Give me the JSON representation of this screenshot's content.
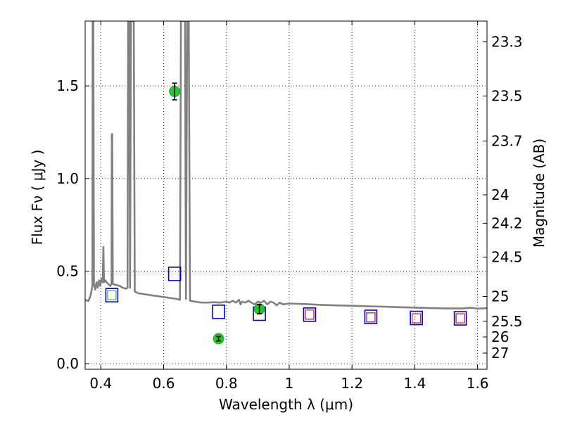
{
  "chart_data": {
    "type": "scatter",
    "xlabel": "Wavelength  λ (μm)",
    "ylabel": "Flux  Fν  ( μJy )",
    "y2label": "Magnitude (AB)",
    "xlim": [
      0.35,
      1.63
    ],
    "ylim": [
      -0.03,
      1.85
    ],
    "grid": true,
    "xticks": [
      0.4,
      0.6,
      0.8,
      1.0,
      1.2,
      1.4,
      1.6
    ],
    "xtick_labels": [
      "0.4",
      "0.6",
      "0.8",
      "1",
      "1.2",
      "1.4",
      "1.6"
    ],
    "yticks": [
      0.0,
      0.5,
      1.0,
      1.5
    ],
    "ytick_labels": [
      "0.0",
      "0.5",
      "1.0",
      "1.5"
    ],
    "mag_ticks": [
      23.3,
      23.5,
      23.7,
      24,
      24.2,
      24.5,
      25,
      25.5,
      26,
      27
    ],
    "mag_tick_labels": [
      "23.3",
      "23.5",
      "23.7",
      "24",
      "24.2",
      "24.5",
      "25",
      "25.5",
      "26",
      "27"
    ],
    "colors": {
      "model": "#808080",
      "observed": "#22cc22",
      "blue_square": "#0000dd",
      "red_square": "#cc2222",
      "green_square": "#55bb55"
    },
    "observed": [
      {
        "x": 0.635,
        "y": 1.47,
        "err": 0.045
      },
      {
        "x": 0.775,
        "y": 0.135,
        "err": 0.012
      },
      {
        "x": 0.905,
        "y": 0.295,
        "err": 0.025
      }
    ],
    "model_photometry_blue": [
      {
        "x": 0.435,
        "y": 0.37
      },
      {
        "x": 0.635,
        "y": 0.485
      },
      {
        "x": 0.775,
        "y": 0.28
      },
      {
        "x": 0.905,
        "y": 0.27
      },
      {
        "x": 1.065,
        "y": 0.265
      },
      {
        "x": 1.26,
        "y": 0.253
      },
      {
        "x": 1.405,
        "y": 0.247
      },
      {
        "x": 1.545,
        "y": 0.245
      }
    ],
    "model_photometry_red": [
      {
        "x": 1.065,
        "y": 0.265
      },
      {
        "x": 1.26,
        "y": 0.25
      },
      {
        "x": 1.405,
        "y": 0.245
      },
      {
        "x": 1.545,
        "y": 0.245
      }
    ],
    "model_photometry_green": [
      {
        "x": 0.435,
        "y": 0.37
      }
    ],
    "model_spectrum": [
      [
        0.35,
        0.345
      ],
      [
        0.36,
        0.338
      ],
      [
        0.366,
        0.36
      ],
      [
        0.37,
        0.39
      ],
      [
        0.373,
        0.42
      ],
      [
        0.374,
        1.85
      ],
      [
        0.376,
        1.85
      ],
      [
        0.378,
        0.43
      ],
      [
        0.382,
        0.4
      ],
      [
        0.386,
        0.44
      ],
      [
        0.39,
        0.41
      ],
      [
        0.394,
        0.45
      ],
      [
        0.398,
        0.42
      ],
      [
        0.402,
        0.46
      ],
      [
        0.406,
        0.44
      ],
      [
        0.408,
        0.63
      ],
      [
        0.41,
        0.44
      ],
      [
        0.414,
        0.45
      ],
      [
        0.418,
        0.44
      ],
      [
        0.424,
        0.43
      ],
      [
        0.43,
        0.42
      ],
      [
        0.434,
        0.43
      ],
      [
        0.435,
        1.24
      ],
      [
        0.436,
        1.24
      ],
      [
        0.438,
        0.43
      ],
      [
        0.45,
        0.425
      ],
      [
        0.46,
        0.42
      ],
      [
        0.47,
        0.41
      ],
      [
        0.48,
        0.405
      ],
      [
        0.485,
        0.41
      ],
      [
        0.487,
        1.85
      ],
      [
        0.49,
        1.85
      ],
      [
        0.493,
        0.41
      ],
      [
        0.496,
        1.85
      ],
      [
        0.499,
        1.85
      ],
      [
        0.502,
        1.85
      ],
      [
        0.505,
        1.85
      ],
      [
        0.508,
        0.39
      ],
      [
        0.52,
        0.38
      ],
      [
        0.54,
        0.375
      ],
      [
        0.56,
        0.37
      ],
      [
        0.58,
        0.365
      ],
      [
        0.6,
        0.36
      ],
      [
        0.62,
        0.355
      ],
      [
        0.64,
        0.35
      ],
      [
        0.652,
        0.345
      ],
      [
        0.655,
        1.85
      ],
      [
        0.66,
        1.85
      ],
      [
        0.663,
        1.85
      ],
      [
        0.666,
        1.85
      ],
      [
        0.668,
        1.85
      ],
      [
        0.671,
        0.35
      ],
      [
        0.675,
        1.85
      ],
      [
        0.68,
        1.85
      ],
      [
        0.684,
        0.34
      ],
      [
        0.7,
        0.335
      ],
      [
        0.72,
        0.33
      ],
      [
        0.74,
        0.33
      ],
      [
        0.76,
        0.332
      ],
      [
        0.78,
        0.33
      ],
      [
        0.8,
        0.335
      ],
      [
        0.81,
        0.33
      ],
      [
        0.82,
        0.34
      ],
      [
        0.83,
        0.33
      ],
      [
        0.84,
        0.345
      ],
      [
        0.845,
        0.32
      ],
      [
        0.85,
        0.335
      ],
      [
        0.86,
        0.33
      ],
      [
        0.87,
        0.34
      ],
      [
        0.88,
        0.33
      ],
      [
        0.89,
        0.32
      ],
      [
        0.9,
        0.335
      ],
      [
        0.91,
        0.33
      ],
      [
        0.92,
        0.34
      ],
      [
        0.93,
        0.32
      ],
      [
        0.94,
        0.335
      ],
      [
        0.95,
        0.33
      ],
      [
        0.96,
        0.315
      ],
      [
        0.97,
        0.33
      ],
      [
        0.98,
        0.32
      ],
      [
        1.0,
        0.325
      ],
      [
        1.05,
        0.322
      ],
      [
        1.1,
        0.318
      ],
      [
        1.15,
        0.315
      ],
      [
        1.2,
        0.313
      ],
      [
        1.25,
        0.31
      ],
      [
        1.3,
        0.308
      ],
      [
        1.35,
        0.305
      ],
      [
        1.4,
        0.303
      ],
      [
        1.45,
        0.3
      ],
      [
        1.5,
        0.298
      ],
      [
        1.55,
        0.298
      ],
      [
        1.58,
        0.302
      ],
      [
        1.6,
        0.297
      ],
      [
        1.63,
        0.3
      ]
    ]
  }
}
